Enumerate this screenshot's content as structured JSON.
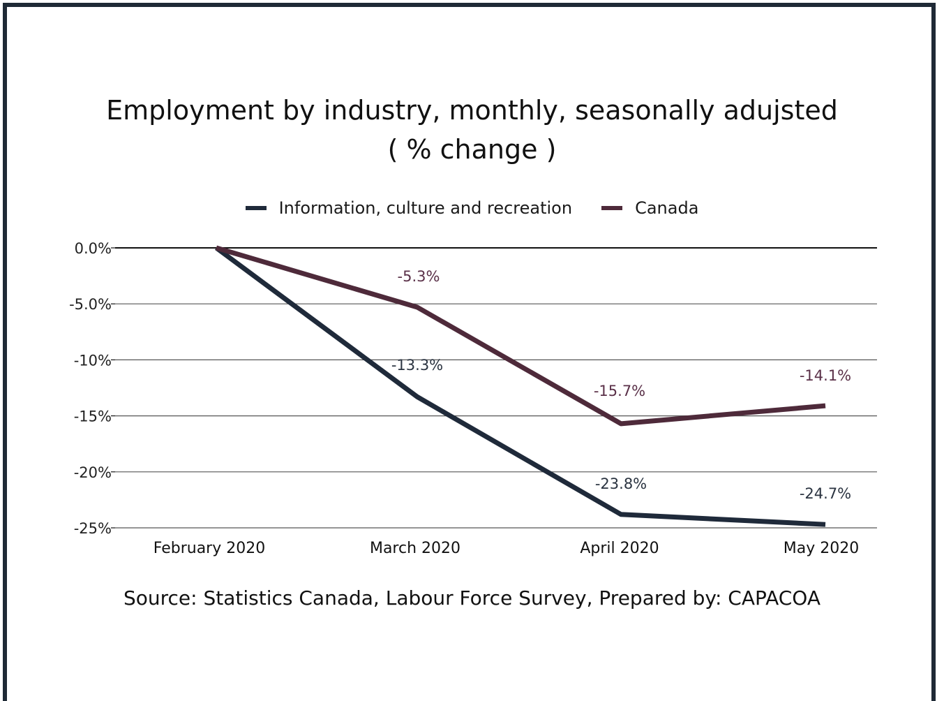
{
  "chart_data": {
    "type": "line",
    "title": "Employment by industry, monthly, seasonally  adujsted",
    "subtitle": "( % change )",
    "categories": [
      "February 2020",
      "March 2020",
      "April 2020",
      "May 2020"
    ],
    "series": [
      {
        "name": "Information, culture and recreation",
        "color": "#1f2a3a",
        "values": [
          0.0,
          -13.3,
          -23.8,
          -24.7
        ],
        "labels": [
          "",
          "-13.3%",
          "-23.8%",
          "-24.7%"
        ]
      },
      {
        "name": "Canada",
        "color": "#4e2a3a",
        "values": [
          0.0,
          -5.3,
          -15.7,
          -14.1
        ],
        "labels": [
          "",
          "-5.3%",
          "-15.7%",
          "-14.1%"
        ]
      }
    ],
    "yticks": [
      {
        "value": 0,
        "label": "0.0%"
      },
      {
        "value": -5,
        "label": "-5.0%"
      },
      {
        "value": -10,
        "label": "-10%"
      },
      {
        "value": -15,
        "label": "-15%"
      },
      {
        "value": -20,
        "label": "-20%"
      },
      {
        "value": -25,
        "label": "-25%"
      }
    ],
    "ylim": [
      -25,
      0
    ],
    "grid": true,
    "legend": "top"
  },
  "source": "Source: Statistics Canada, Labour Force Survey, Prepared by: CAPACOA"
}
